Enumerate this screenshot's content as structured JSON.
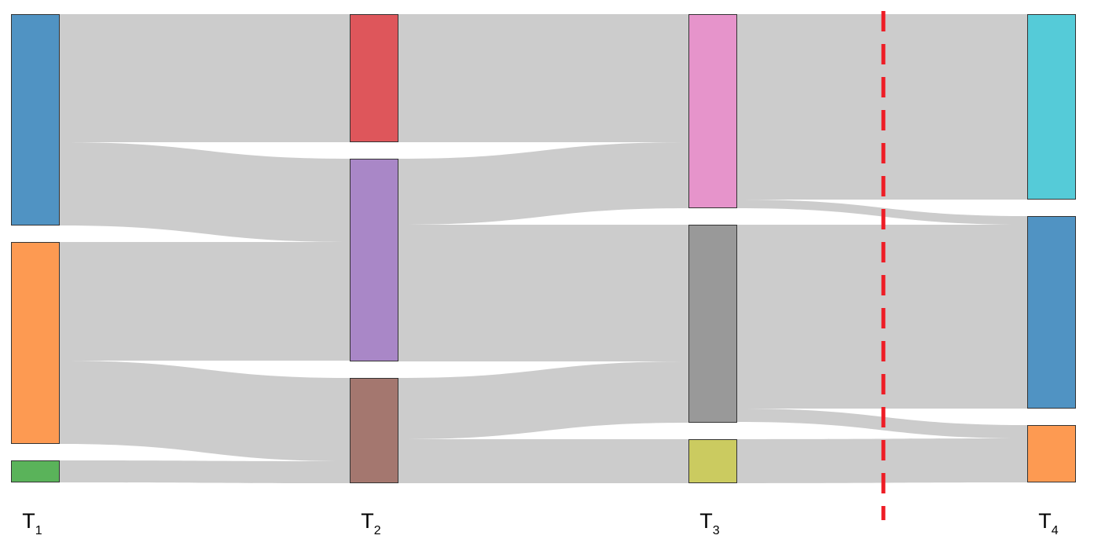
{
  "chart_data": {
    "type": "sankey",
    "link_color": "#cccccc",
    "stages": [
      {
        "text": "T",
        "subscript": "1",
        "nodes": [
          {
            "color": "#5093c3",
            "links": [
              {
                "target": 0,
                "value": 163
              },
              {
                "target": 1,
                "value": 106
              }
            ]
          },
          {
            "color": "#fd9a52",
            "links": [
              {
                "target": 1,
                "value": 151
              },
              {
                "target": 2,
                "value": 106
              }
            ]
          },
          {
            "color": "#5ab35a",
            "links": [
              {
                "target": 2,
                "value": 28
              }
            ]
          }
        ]
      },
      {
        "text": "T",
        "subscript": "2",
        "nodes": [
          {
            "color": "#de565b",
            "links": [
              {
                "target": 0,
                "value": 163
              }
            ]
          },
          {
            "color": "#a987c7",
            "links": [
              {
                "target": 0,
                "value": 84
              },
              {
                "target": 1,
                "value": 174
              }
            ]
          },
          {
            "color": "#a4776f",
            "links": [
              {
                "target": 1,
                "value": 78
              },
              {
                "target": 2,
                "value": 56
              }
            ]
          }
        ]
      },
      {
        "text": "T",
        "subscript": "3",
        "nodes": [
          {
            "color": "#e694cb",
            "links": [
              {
                "target": 0,
                "value": 236
              },
              {
                "target": 1,
                "value": 11
              }
            ]
          },
          {
            "color": "#999999",
            "links": [
              {
                "target": 1,
                "value": 234
              },
              {
                "target": 2,
                "value": 17
              }
            ]
          },
          {
            "color": "#cbcb60",
            "links": [
              {
                "target": 2,
                "value": 56
              }
            ]
          }
        ]
      },
      {
        "text": "T",
        "subscript": "4",
        "nodes": [
          {
            "color": "#55cbd8",
            "links": []
          },
          {
            "color": "#5093c3",
            "links": []
          },
          {
            "color": "#fd9a52",
            "links": []
          }
        ]
      }
    ]
  }
}
